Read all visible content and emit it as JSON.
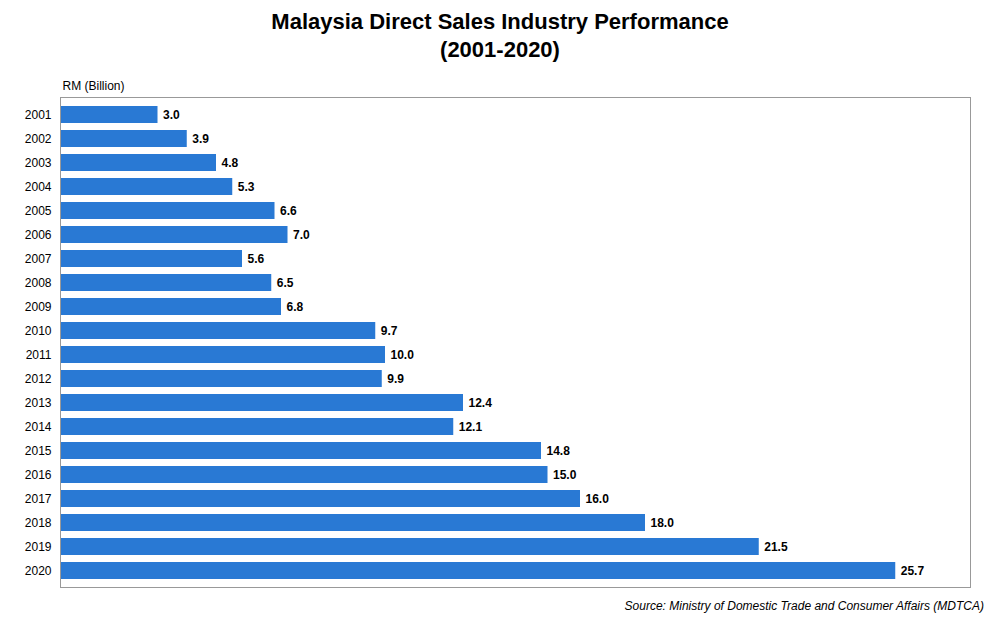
{
  "chart_data": {
    "type": "bar",
    "orientation": "horizontal",
    "title": "Malaysia Direct Sales Industry Performance\n(2001-2020)",
    "xlabel": "RM (Billion)",
    "source": "Source: Ministry of Domestic Trade and Consumer Affairs (MDTCA)",
    "categories": [
      "2001",
      "2002",
      "2003",
      "2004",
      "2005",
      "2006",
      "2007",
      "2008",
      "2009",
      "2010",
      "2011",
      "2012",
      "2013",
      "2014",
      "2015",
      "2016",
      "2017",
      "2018",
      "2019",
      "2020"
    ],
    "values": [
      3.0,
      3.9,
      4.8,
      5.3,
      6.6,
      7.0,
      5.6,
      6.5,
      6.8,
      9.7,
      10.0,
      9.9,
      12.4,
      12.1,
      14.8,
      15.0,
      16.0,
      18.0,
      21.5,
      25.7
    ],
    "value_labels": [
      "3.0",
      "3.9",
      "4.8",
      "5.3",
      "6.6",
      "7.0",
      "5.6",
      "6.5",
      "6.8",
      "9.7",
      "10.0",
      "9.9",
      "12.4",
      "12.1",
      "14.8",
      "15.0",
      "16.0",
      "18.0",
      "21.5",
      "25.7"
    ],
    "color": "#2979d4",
    "xlim": [
      0,
      28
    ],
    "data_labels": true,
    "tick_labels": "y",
    "grid": false
  }
}
